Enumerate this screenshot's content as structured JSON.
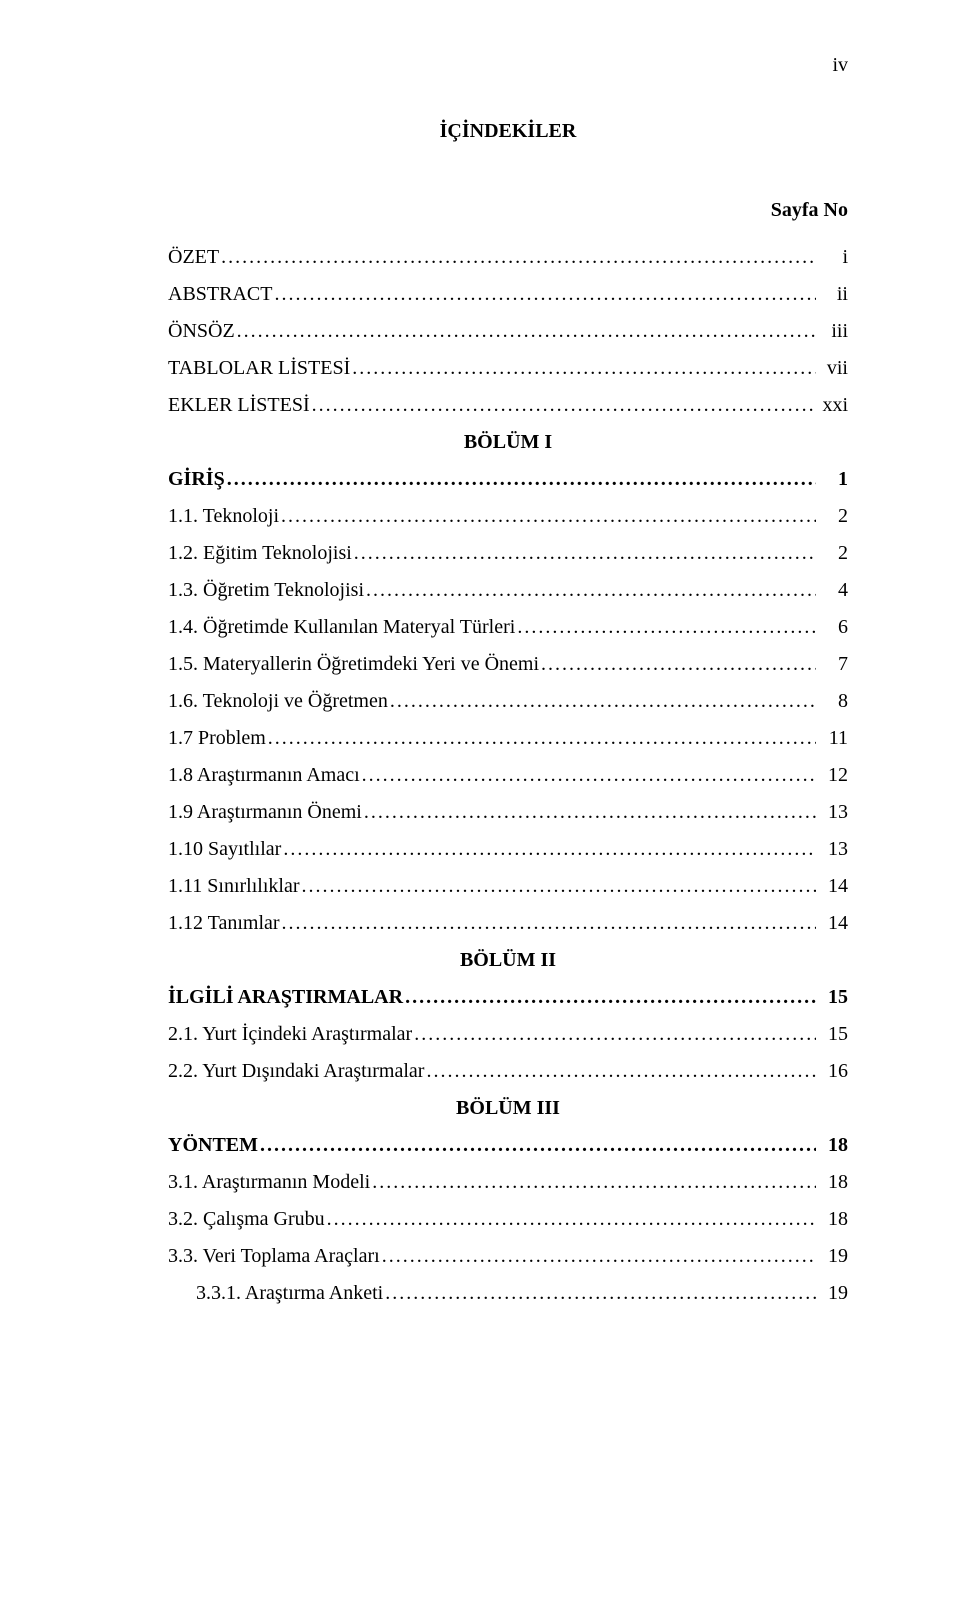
{
  "colors": {
    "background": "#ffffff",
    "text": "#000000"
  },
  "typography": {
    "font_family": "Times New Roman",
    "base_size_pt": 12,
    "line_height": 1.75
  },
  "page_number": "iv",
  "title": "İÇİNDEKİLER",
  "column_header": "Sayfa No",
  "sections": {
    "bolum1": "BÖLÜM I",
    "bolum2": "BÖLÜM II",
    "bolum3": "BÖLÜM III"
  },
  "entries": {
    "ozet": {
      "label": "ÖZET",
      "page": "i"
    },
    "abstract": {
      "label": "ABSTRACT",
      "page": "ii"
    },
    "onsoz": {
      "label": "ÖNSÖZ",
      "page": "iii"
    },
    "tablolar": {
      "label": "TABLOLAR LİSTESİ",
      "page": "vii"
    },
    "ekler": {
      "label": "EKLER LİSTESİ",
      "page": "xxi"
    },
    "giris": {
      "label": "GİRİŞ",
      "page": "1"
    },
    "e11": {
      "label": "1.1. Teknoloji",
      "page": "2"
    },
    "e12": {
      "label": "1.2. Eğitim Teknolojisi",
      "page": "2"
    },
    "e13": {
      "label": "1.3. Öğretim Teknolojisi",
      "page": "4"
    },
    "e14": {
      "label": "1.4. Öğretimde Kullanılan Materyal Türleri",
      "page": "6"
    },
    "e15": {
      "label": "1.5. Materyallerin Öğretimdeki Yeri ve Önemi",
      "page": "7"
    },
    "e16": {
      "label": "1.6. Teknoloji ve Öğretmen",
      "page": "8"
    },
    "e17": {
      "label": "1.7 Problem",
      "page": "11"
    },
    "e18": {
      "label": "1.8 Araştırmanın Amacı",
      "page": "12"
    },
    "e19": {
      "label": "1.9 Araştırmanın Önemi",
      "page": "13"
    },
    "e110": {
      "label": "1.10 Sayıtlılar",
      "page": "13"
    },
    "e111": {
      "label": "1.11 Sınırlılıklar",
      "page": "14"
    },
    "e112": {
      "label": "1.12 Tanımlar",
      "page": "14"
    },
    "ilgili": {
      "label": "İLGİLİ ARAŞTIRMALAR",
      "page": "15"
    },
    "e21": {
      "label": "2.1. Yurt İçindeki Araştırmalar",
      "page": "15"
    },
    "e22": {
      "label": "2.2. Yurt Dışındaki Araştırmalar",
      "page": "16"
    },
    "yontem": {
      "label": "YÖNTEM",
      "page": "18"
    },
    "e31": {
      "label": "3.1. Araştırmanın Modeli",
      "page": "18"
    },
    "e32": {
      "label": "3.2. Çalışma Grubu",
      "page": "18"
    },
    "e33": {
      "label": "3.3. Veri Toplama Araçları",
      "page": "19"
    },
    "e331": {
      "label": "3.3.1. Araştırma Anketi",
      "page": "19"
    }
  },
  "leader_dots": "............................................................................................................................................"
}
